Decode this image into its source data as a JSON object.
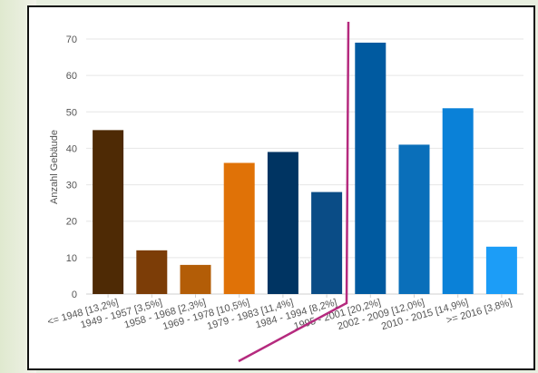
{
  "chart_data": {
    "type": "bar",
    "title": "",
    "xlabel": "",
    "ylabel": "Anzahl Gebäude",
    "ylim": [
      0,
      70
    ],
    "yticks": [
      0,
      10,
      20,
      30,
      40,
      50,
      60,
      70
    ],
    "grid": true,
    "legend": "none",
    "categories": [
      "<= 1948 [13,2%]",
      "1949 - 1957 [3,5%]",
      "1958 - 1968 [2,3%]",
      "1969 - 1978 [10,5%]",
      "1979 - 1983 [11,4%]",
      "1984 - 1994 [8,2%]",
      "1995 - 2001 [20,2%]",
      "2002 - 2009 [12,0%]",
      "2010 - 2015 [14,9%]",
      ">= 2016 [3,8%]"
    ],
    "values": [
      45,
      12,
      8,
      36,
      39,
      28,
      69,
      41,
      51,
      13
    ],
    "colors": [
      "#4e2a05",
      "#7c3d07",
      "#b35d07",
      "#e07207",
      "#003462",
      "#0a4c86",
      "#005aa0",
      "#0a6fba",
      "#0a81d8",
      "#1c9df7"
    ],
    "annotation_color": "#b52a7e"
  }
}
